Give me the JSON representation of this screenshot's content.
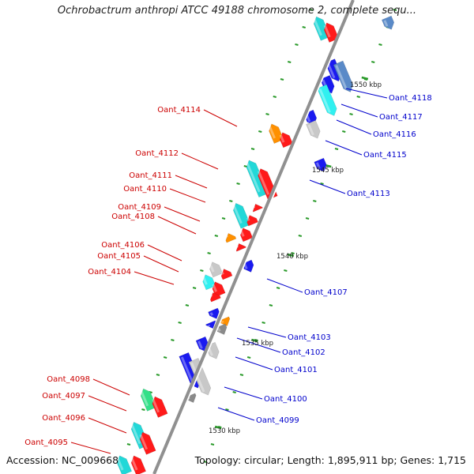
{
  "title": "Ochrobactrum anthropi ATCC 49188 chromosome 2, complete sequ...",
  "footer": {
    "accession": "Accession: NC_009668",
    "summary": "Topology: circular; Length: 1,895,911 bp; Genes: 1,715"
  },
  "colors": {
    "backbone": "#909090",
    "tick": "#2a9a2a",
    "label_forward": "#cc0000",
    "label_reverse": "#0000cc",
    "red": "#ff1a1a",
    "cyan": "#22d8d8",
    "blue": "#1a1af0",
    "orange": "#ff9000",
    "gray": "#c8c8c8",
    "darkgray": "#8a8a8a",
    "green": "#33e088",
    "steel": "#5a8ac8",
    "pale_cyan": "#30f0f0"
  },
  "scale_labels": [
    "1550 kbp",
    "1545 kbp",
    "1540 kbp",
    "1535 kbp",
    "1530 kbp"
  ],
  "gene_labels_forward": [
    "Oant_4114",
    "Oant_4112",
    "Oant_4111",
    "Oant_4110",
    "Oant_4109",
    "Oant_4108",
    "Oant_4106",
    "Oant_4105",
    "Oant_4104",
    "Oant_4098",
    "Oant_4097",
    "Oant_4096",
    "Oant_4095"
  ],
  "gene_labels_reverse": [
    "Oant_4118",
    "Oant_4117",
    "Oant_4116",
    "Oant_4115",
    "Oant_4113",
    "Oant_4107",
    "Oant_4103",
    "Oant_4102",
    "Oant_4101",
    "Oant_4100",
    "Oant_4099"
  ]
}
